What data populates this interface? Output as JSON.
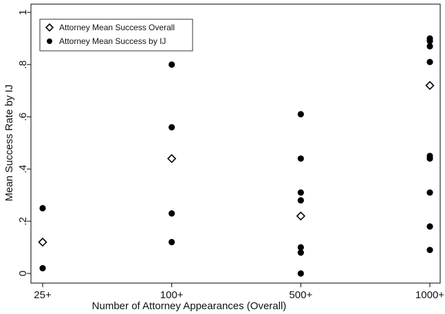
{
  "chart_data": {
    "type": "scatter",
    "title": "",
    "xlabel": "Number of Attorney Appearances (Overall)",
    "ylabel": "Mean Success Rate by IJ",
    "categories": [
      "25+",
      "100+",
      "500+",
      "1000+"
    ],
    "y_ticks": [
      0,
      0.2,
      0.4,
      0.6,
      0.8,
      1
    ],
    "y_tick_labels": [
      "0",
      ".2",
      ".4",
      ".6",
      ".8",
      "1"
    ],
    "ylim": [
      0,
      1
    ],
    "grid": false,
    "legend_position": "top-left",
    "series": [
      {
        "name": "Attorney Mean Success Overall",
        "marker": "hollow-diamond",
        "points": [
          {
            "x": "25+",
            "y": 0.12
          },
          {
            "x": "100+",
            "y": 0.44
          },
          {
            "x": "500+",
            "y": 0.22
          },
          {
            "x": "1000+",
            "y": 0.72
          }
        ]
      },
      {
        "name": "Attorney Mean Success by IJ",
        "marker": "filled-circle",
        "points": [
          {
            "x": "25+",
            "y": 0.25
          },
          {
            "x": "25+",
            "y": 0.02
          },
          {
            "x": "100+",
            "y": 0.8
          },
          {
            "x": "100+",
            "y": 0.56
          },
          {
            "x": "100+",
            "y": 0.23
          },
          {
            "x": "100+",
            "y": 0.12
          },
          {
            "x": "500+",
            "y": 0.61
          },
          {
            "x": "500+",
            "y": 0.44
          },
          {
            "x": "500+",
            "y": 0.31
          },
          {
            "x": "500+",
            "y": 0.28
          },
          {
            "x": "500+",
            "y": 0.1
          },
          {
            "x": "500+",
            "y": 0.08
          },
          {
            "x": "500+",
            "y": 0.0
          },
          {
            "x": "1000+",
            "y": 0.9
          },
          {
            "x": "1000+",
            "y": 0.89
          },
          {
            "x": "1000+",
            "y": 0.87
          },
          {
            "x": "1000+",
            "y": 0.81
          },
          {
            "x": "1000+",
            "y": 0.45
          },
          {
            "x": "1000+",
            "y": 0.44
          },
          {
            "x": "1000+",
            "y": 0.31
          },
          {
            "x": "1000+",
            "y": 0.18
          },
          {
            "x": "1000+",
            "y": 0.09
          }
        ]
      }
    ],
    "colors": {
      "marker": "#000000",
      "frame": "#000000",
      "background": "#ffffff"
    }
  }
}
